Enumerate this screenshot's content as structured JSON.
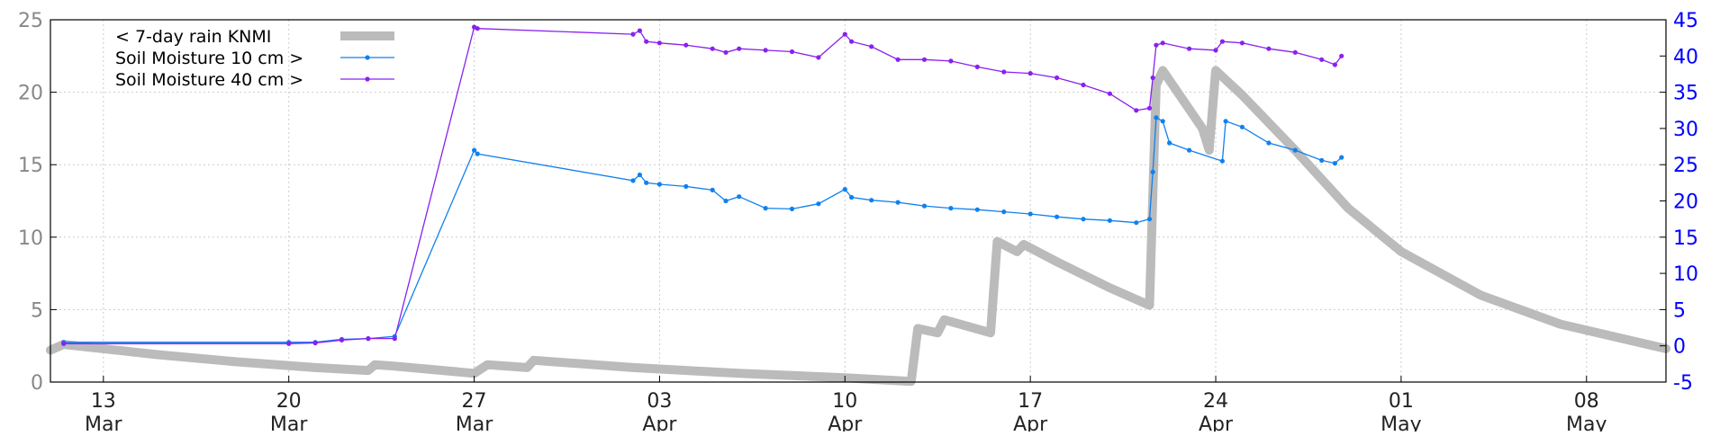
{
  "chart_data": {
    "type": "line",
    "title": "",
    "xlabel": "",
    "ylabel_left": "",
    "ylabel_right": "",
    "grid": true,
    "legend_position": "top-left",
    "x_range": [
      "2024-03-11",
      "2024-05-11"
    ],
    "y_left_range": [
      0,
      25
    ],
    "y_right_range": [
      -5,
      45
    ],
    "y_left_ticks": [
      "0",
      "5",
      "10",
      "15",
      "20",
      "25"
    ],
    "y_right_ticks": [
      "-5",
      "0",
      "5",
      "10",
      "15",
      "20",
      "25",
      "30",
      "35",
      "40",
      "45"
    ],
    "x_ticks": [
      {
        "date": "2024-03-13",
        "day": "13",
        "month": "Mar"
      },
      {
        "date": "2024-03-20",
        "day": "20",
        "month": "Mar"
      },
      {
        "date": "2024-03-27",
        "day": "27",
        "month": "Mar"
      },
      {
        "date": "2024-04-03",
        "day": "03",
        "month": "Apr"
      },
      {
        "date": "2024-04-10",
        "day": "10",
        "month": "Apr"
      },
      {
        "date": "2024-04-17",
        "day": "17",
        "month": "Apr"
      },
      {
        "date": "2024-04-24",
        "day": "24",
        "month": "Apr"
      },
      {
        "date": "2024-05-01",
        "day": "01",
        "month": "May"
      },
      {
        "date": "2024-05-08",
        "day": "08",
        "month": "May"
      }
    ],
    "series": [
      {
        "name": "< 7-day rain KNMI",
        "axis": "left",
        "color": "#bbbbbb",
        "style": "thick",
        "points": [
          [
            "2024-03-11",
            2.2
          ],
          [
            "2024-03-11 12:00",
            2.6
          ],
          [
            "2024-03-13",
            2.3
          ],
          [
            "2024-03-15",
            1.9
          ],
          [
            "2024-03-18",
            1.4
          ],
          [
            "2024-03-21",
            1.0
          ],
          [
            "2024-03-23",
            0.8
          ],
          [
            "2024-03-23 06:00",
            1.2
          ],
          [
            "2024-03-24",
            1.1
          ],
          [
            "2024-03-27",
            0.6
          ],
          [
            "2024-03-27 12:00",
            1.2
          ],
          [
            "2024-03-29",
            1.0
          ],
          [
            "2024-03-29 06:00",
            1.5
          ],
          [
            "2024-04-02",
            1.0
          ],
          [
            "2024-04-06",
            0.6
          ],
          [
            "2024-04-10",
            0.3
          ],
          [
            "2024-04-12 12:00",
            0.05
          ],
          [
            "2024-04-12 18:00",
            3.7
          ],
          [
            "2024-04-13 12:00",
            3.4
          ],
          [
            "2024-04-13 18:00",
            4.3
          ],
          [
            "2024-04-15 12:00",
            3.4
          ],
          [
            "2024-04-15 18:00",
            9.7
          ],
          [
            "2024-04-16 12:00",
            9.0
          ],
          [
            "2024-04-16 18:00",
            9.5
          ],
          [
            "2024-04-18",
            8.3
          ],
          [
            "2024-04-20",
            6.5
          ],
          [
            "2024-04-21 12:00",
            5.3
          ],
          [
            "2024-04-21 18:00",
            20.5
          ],
          [
            "2024-04-22",
            21.5
          ],
          [
            "2024-04-23 12:00",
            17.5
          ],
          [
            "2024-04-23 18:00",
            16.0
          ],
          [
            "2024-04-24",
            21.5
          ],
          [
            "2024-04-25",
            19.8
          ],
          [
            "2024-04-27",
            16.0
          ],
          [
            "2024-04-29",
            12.0
          ],
          [
            "2024-05-01",
            9.0
          ],
          [
            "2024-05-04",
            6.0
          ],
          [
            "2024-05-07",
            4.0
          ],
          [
            "2024-05-11",
            2.3
          ]
        ]
      },
      {
        "name": "Soil Moisture 10 cm >",
        "axis": "right",
        "color": "#1080f0",
        "style": "thin-dots",
        "points": [
          [
            "2024-03-11 12:00",
            0.5
          ],
          [
            "2024-03-20",
            0.5
          ],
          [
            "2024-03-21",
            0.5
          ],
          [
            "2024-03-22",
            0.9
          ],
          [
            "2024-03-23",
            1.0
          ],
          [
            "2024-03-24",
            1.3
          ],
          [
            "2024-03-27",
            27.0
          ],
          [
            "2024-03-27 03:00",
            26.5
          ],
          [
            "2024-04-02",
            22.8
          ],
          [
            "2024-04-02 06:00",
            23.6
          ],
          [
            "2024-04-02 12:00",
            22.5
          ],
          [
            "2024-04-03",
            22.3
          ],
          [
            "2024-04-04",
            22.0
          ],
          [
            "2024-04-05",
            21.5
          ],
          [
            "2024-04-05 12:00",
            20.0
          ],
          [
            "2024-04-06",
            20.6
          ],
          [
            "2024-04-07",
            19.0
          ],
          [
            "2024-04-08",
            18.9
          ],
          [
            "2024-04-09",
            19.6
          ],
          [
            "2024-04-10",
            21.6
          ],
          [
            "2024-04-10 06:00",
            20.5
          ],
          [
            "2024-04-11",
            20.1
          ],
          [
            "2024-04-12",
            19.8
          ],
          [
            "2024-04-13",
            19.3
          ],
          [
            "2024-04-14",
            19.0
          ],
          [
            "2024-04-15",
            18.8
          ],
          [
            "2024-04-16",
            18.5
          ],
          [
            "2024-04-17",
            18.2
          ],
          [
            "2024-04-18",
            17.8
          ],
          [
            "2024-04-19",
            17.5
          ],
          [
            "2024-04-20",
            17.3
          ],
          [
            "2024-04-21",
            17.0
          ],
          [
            "2024-04-21 12:00",
            17.5
          ],
          [
            "2024-04-21 15:00",
            24.0
          ],
          [
            "2024-04-21 18:00",
            31.5
          ],
          [
            "2024-04-22",
            31.0
          ],
          [
            "2024-04-22 06:00",
            28.0
          ],
          [
            "2024-04-23",
            27.0
          ],
          [
            "2024-04-24 06:00",
            25.5
          ],
          [
            "2024-04-24 09:00",
            31.0
          ],
          [
            "2024-04-25",
            30.2
          ],
          [
            "2024-04-26",
            28.0
          ],
          [
            "2024-04-27",
            27.0
          ],
          [
            "2024-04-28",
            25.6
          ],
          [
            "2024-04-28 12:00",
            25.2
          ],
          [
            "2024-04-28 18:00",
            26.0
          ]
        ]
      },
      {
        "name": "Soil Moisture 40 cm >",
        "axis": "right",
        "color": "#8a20f0",
        "style": "thin-dots",
        "points": [
          [
            "2024-03-11 12:00",
            0.3
          ],
          [
            "2024-03-20",
            0.3
          ],
          [
            "2024-03-21",
            0.4
          ],
          [
            "2024-03-22",
            0.8
          ],
          [
            "2024-03-23",
            1.0
          ],
          [
            "2024-03-24",
            1.0
          ],
          [
            "2024-03-27",
            44.0
          ],
          [
            "2024-03-27 03:00",
            43.8
          ],
          [
            "2024-04-02",
            43.0
          ],
          [
            "2024-04-02 06:00",
            43.5
          ],
          [
            "2024-04-02 12:00",
            42.0
          ],
          [
            "2024-04-03",
            41.8
          ],
          [
            "2024-04-04",
            41.5
          ],
          [
            "2024-04-05",
            41.0
          ],
          [
            "2024-04-05 12:00",
            40.5
          ],
          [
            "2024-04-06",
            41.0
          ],
          [
            "2024-04-07",
            40.8
          ],
          [
            "2024-04-08",
            40.6
          ],
          [
            "2024-04-09",
            39.8
          ],
          [
            "2024-04-10",
            43.0
          ],
          [
            "2024-04-10 06:00",
            42.0
          ],
          [
            "2024-04-11",
            41.3
          ],
          [
            "2024-04-12",
            39.5
          ],
          [
            "2024-04-13",
            39.5
          ],
          [
            "2024-04-14",
            39.3
          ],
          [
            "2024-04-15",
            38.5
          ],
          [
            "2024-04-16",
            37.8
          ],
          [
            "2024-04-17",
            37.6
          ],
          [
            "2024-04-18",
            37.0
          ],
          [
            "2024-04-19",
            36.0
          ],
          [
            "2024-04-20",
            34.8
          ],
          [
            "2024-04-21",
            32.5
          ],
          [
            "2024-04-21 12:00",
            32.8
          ],
          [
            "2024-04-21 15:00",
            37.0
          ],
          [
            "2024-04-21 18:00",
            41.5
          ],
          [
            "2024-04-22",
            41.8
          ],
          [
            "2024-04-23",
            41.0
          ],
          [
            "2024-04-24",
            40.8
          ],
          [
            "2024-04-24 06:00",
            42.0
          ],
          [
            "2024-04-25",
            41.8
          ],
          [
            "2024-04-26",
            41.0
          ],
          [
            "2024-04-27",
            40.5
          ],
          [
            "2024-04-28",
            39.5
          ],
          [
            "2024-04-28 12:00",
            38.8
          ],
          [
            "2024-04-28 18:00",
            40.0
          ]
        ]
      }
    ]
  }
}
